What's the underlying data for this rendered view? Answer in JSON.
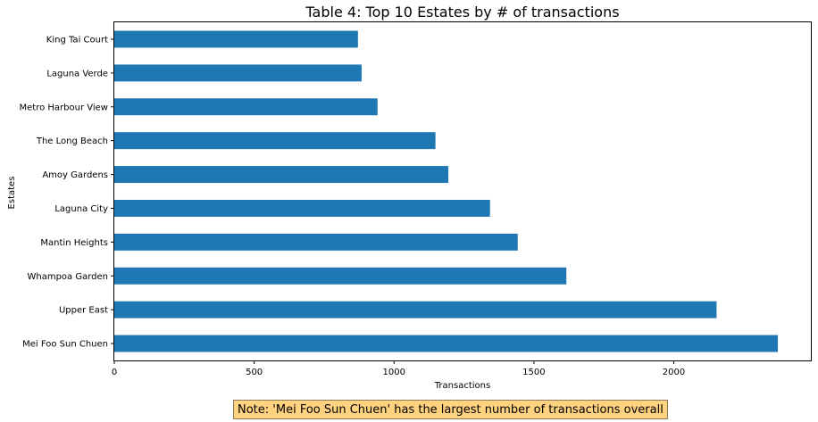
{
  "chart_data": {
    "type": "bar",
    "orientation": "horizontal",
    "title": "Table 4: Top 10 Estates by # of transactions",
    "xlabel": "Transactions",
    "ylabel": "Estates",
    "categories": [
      "Mei Foo Sun Chuen",
      "Upper East",
      "Whampoa Garden",
      "Mantin Heights",
      "Laguna City",
      "Amoy Gardens",
      "The Long Beach",
      "Metro Harbour View",
      "Laguna Verde",
      "King Tai Court"
    ],
    "values": [
      2372,
      2153,
      1616,
      1442,
      1343,
      1194,
      1148,
      941,
      884,
      871
    ],
    "xlim": [
      0,
      2490
    ],
    "xticks": [
      0,
      500,
      1000,
      1500,
      2000
    ],
    "grid": false,
    "bar_color": "#1f77b4"
  },
  "note": {
    "text": "Note: 'Mei Foo Sun Chuen' has the largest number of transactions overall",
    "background": "#ffd27f"
  }
}
